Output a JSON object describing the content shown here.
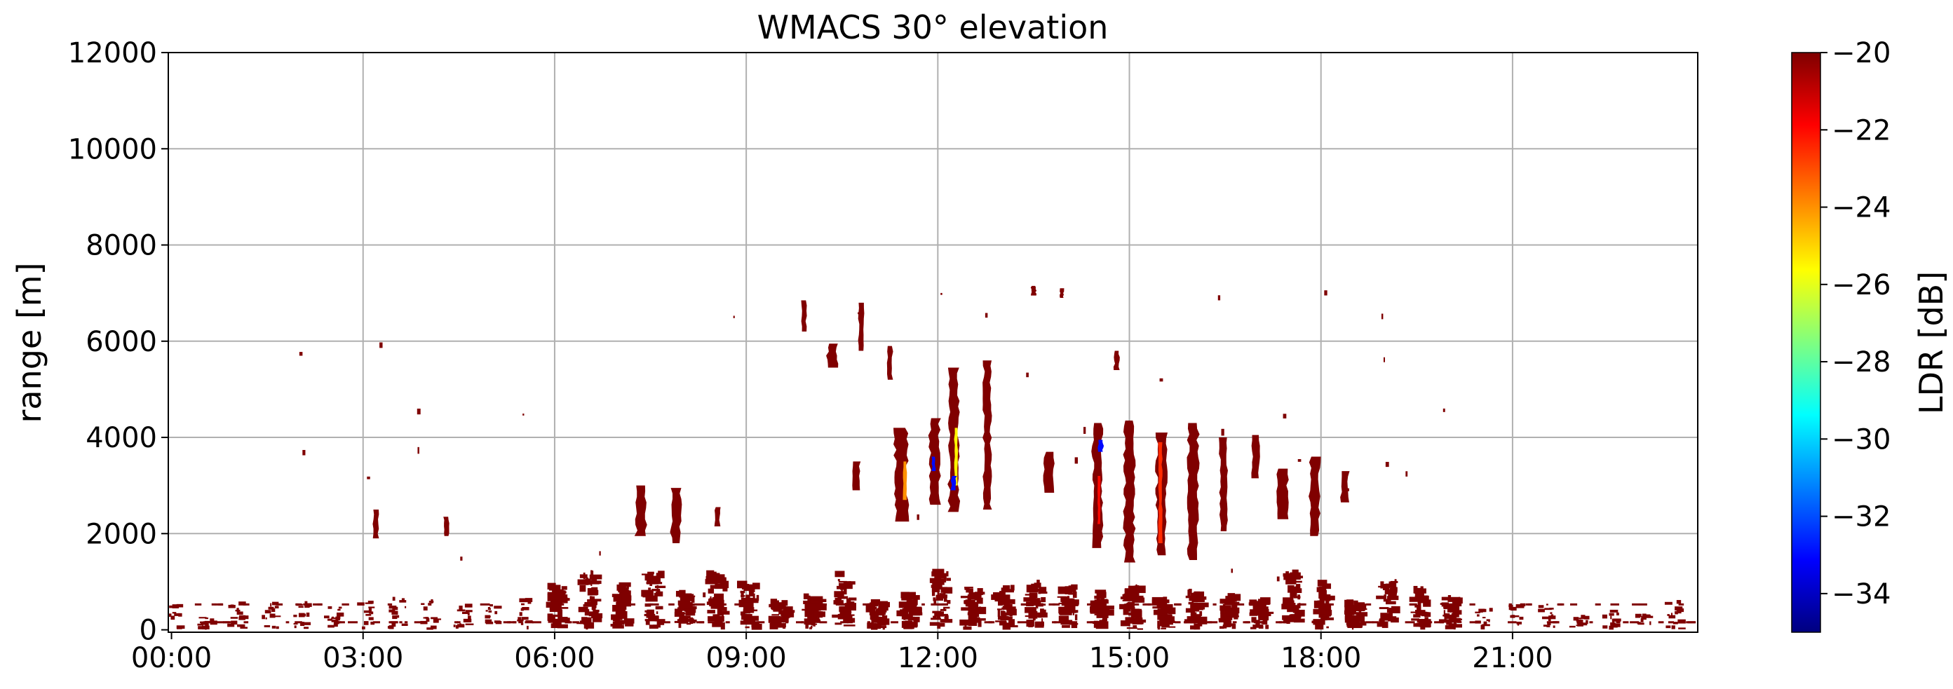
{
  "chart_data": {
    "type": "heatmap",
    "title": "WMACS 30° elevation",
    "xlabel": "",
    "ylabel": "range [m]",
    "x_tick_labels": [
      "00:00",
      "03:00",
      "06:00",
      "09:00",
      "12:00",
      "15:00",
      "18:00",
      "21:00"
    ],
    "x_ticks_hours": [
      0,
      3,
      6,
      9,
      12,
      15,
      18,
      21
    ],
    "xlim_hours": [
      -0.05,
      23.9
    ],
    "y_tick_labels": [
      "0",
      "2000",
      "4000",
      "6000",
      "8000",
      "10000",
      "12000"
    ],
    "y_ticks": [
      0,
      2000,
      4000,
      6000,
      8000,
      10000,
      12000
    ],
    "ylim": [
      -50,
      12000
    ],
    "grid": true,
    "colorbar": {
      "label": "LDR [dB]",
      "colormap": "jet",
      "range": [
        -35,
        -20
      ],
      "tick_labels": [
        "−20",
        "−22",
        "−24",
        "−26",
        "−28",
        "−30",
        "−32",
        "−34"
      ],
      "ticks": [
        -20,
        -22,
        -24,
        -26,
        -28,
        -30,
        -32,
        -34
      ]
    },
    "dominant_color": "#7f0000",
    "echoes": [
      {
        "t0": 7.25,
        "t1": 7.45,
        "r0": 1950,
        "r1": 3000,
        "ldr": -20
      },
      {
        "t0": 7.8,
        "t1": 8.0,
        "r0": 1800,
        "r1": 2950,
        "ldr": -20
      },
      {
        "t0": 8.5,
        "t1": 8.6,
        "r0": 2150,
        "r1": 2550,
        "ldr": -20
      },
      {
        "t0": 10.65,
        "t1": 10.8,
        "r0": 2900,
        "r1": 3500,
        "ldr": -20
      },
      {
        "t0": 11.3,
        "t1": 11.55,
        "r0": 2250,
        "r1": 4200,
        "ldr": -20
      },
      {
        "t0": 11.85,
        "t1": 12.05,
        "r0": 2600,
        "r1": 4400,
        "ldr": -20
      },
      {
        "t0": 12.15,
        "t1": 12.35,
        "r0": 2450,
        "r1": 5450,
        "ldr": -20
      },
      {
        "t0": 12.7,
        "t1": 12.85,
        "r0": 2500,
        "r1": 5600,
        "ldr": -20
      },
      {
        "t0": 13.65,
        "t1": 13.85,
        "r0": 2850,
        "r1": 3700,
        "ldr": -20
      },
      {
        "t0": 14.4,
        "t1": 14.6,
        "r0": 1700,
        "r1": 4300,
        "ldr": -20
      },
      {
        "t0": 14.9,
        "t1": 15.1,
        "r0": 1400,
        "r1": 4350,
        "ldr": -20
      },
      {
        "t0": 15.4,
        "t1": 15.6,
        "r0": 1550,
        "r1": 4100,
        "ldr": -20
      },
      {
        "t0": 15.9,
        "t1": 16.1,
        "r0": 1450,
        "r1": 4300,
        "ldr": -20
      },
      {
        "t0": 16.4,
        "t1": 16.55,
        "r0": 2050,
        "r1": 4000,
        "ldr": -20
      },
      {
        "t0": 16.9,
        "t1": 17.05,
        "r0": 3150,
        "r1": 4050,
        "ldr": -20
      },
      {
        "t0": 17.3,
        "t1": 17.5,
        "r0": 2300,
        "r1": 3350,
        "ldr": -20
      },
      {
        "t0": 17.8,
        "t1": 18.0,
        "r0": 1950,
        "r1": 3600,
        "ldr": -20
      },
      {
        "t0": 18.3,
        "t1": 18.45,
        "r0": 2650,
        "r1": 3300,
        "ldr": -20
      },
      {
        "t0": 10.25,
        "t1": 10.45,
        "r0": 5450,
        "r1": 5950,
        "ldr": -20
      },
      {
        "t0": 10.75,
        "t1": 10.85,
        "r0": 5800,
        "r1": 6800,
        "ldr": -20
      },
      {
        "t0": 9.85,
        "t1": 9.95,
        "r0": 6200,
        "r1": 6850,
        "ldr": -20
      },
      {
        "t0": 11.2,
        "t1": 11.3,
        "r0": 5200,
        "r1": 5900,
        "ldr": -20
      },
      {
        "t0": 14.75,
        "t1": 14.85,
        "r0": 5400,
        "r1": 5800,
        "ldr": -20
      },
      {
        "t0": 13.45,
        "t1": 13.55,
        "r0": 6950,
        "r1": 7150,
        "ldr": -20
      },
      {
        "t0": 13.9,
        "t1": 13.98,
        "r0": 6900,
        "r1": 7100,
        "ldr": -20
      },
      {
        "t0": 3.15,
        "t1": 3.25,
        "r0": 1900,
        "r1": 2500,
        "ldr": -20
      },
      {
        "t0": 4.25,
        "t1": 4.35,
        "r0": 1950,
        "r1": 2350,
        "ldr": -20
      },
      {
        "t0": 11.45,
        "t1": 11.52,
        "r0": 2700,
        "r1": 3500,
        "ldr": -24
      },
      {
        "t0": 12.25,
        "t1": 12.32,
        "r0": 3000,
        "r1": 4200,
        "ldr": -25.5
      },
      {
        "t0": 12.2,
        "t1": 12.3,
        "r0": 2900,
        "r1": 3200,
        "ldr": -33
      },
      {
        "t0": 14.5,
        "t1": 14.55,
        "r0": 2200,
        "r1": 3200,
        "ldr": -22
      },
      {
        "t0": 15.45,
        "t1": 15.52,
        "r0": 1800,
        "r1": 3900,
        "ldr": -22.5
      },
      {
        "t0": 11.9,
        "t1": 11.97,
        "r0": 3300,
        "r1": 3600,
        "ldr": -33
      },
      {
        "t0": 14.5,
        "t1": 14.6,
        "r0": 3700,
        "r1": 3950,
        "ldr": -33
      }
    ]
  }
}
